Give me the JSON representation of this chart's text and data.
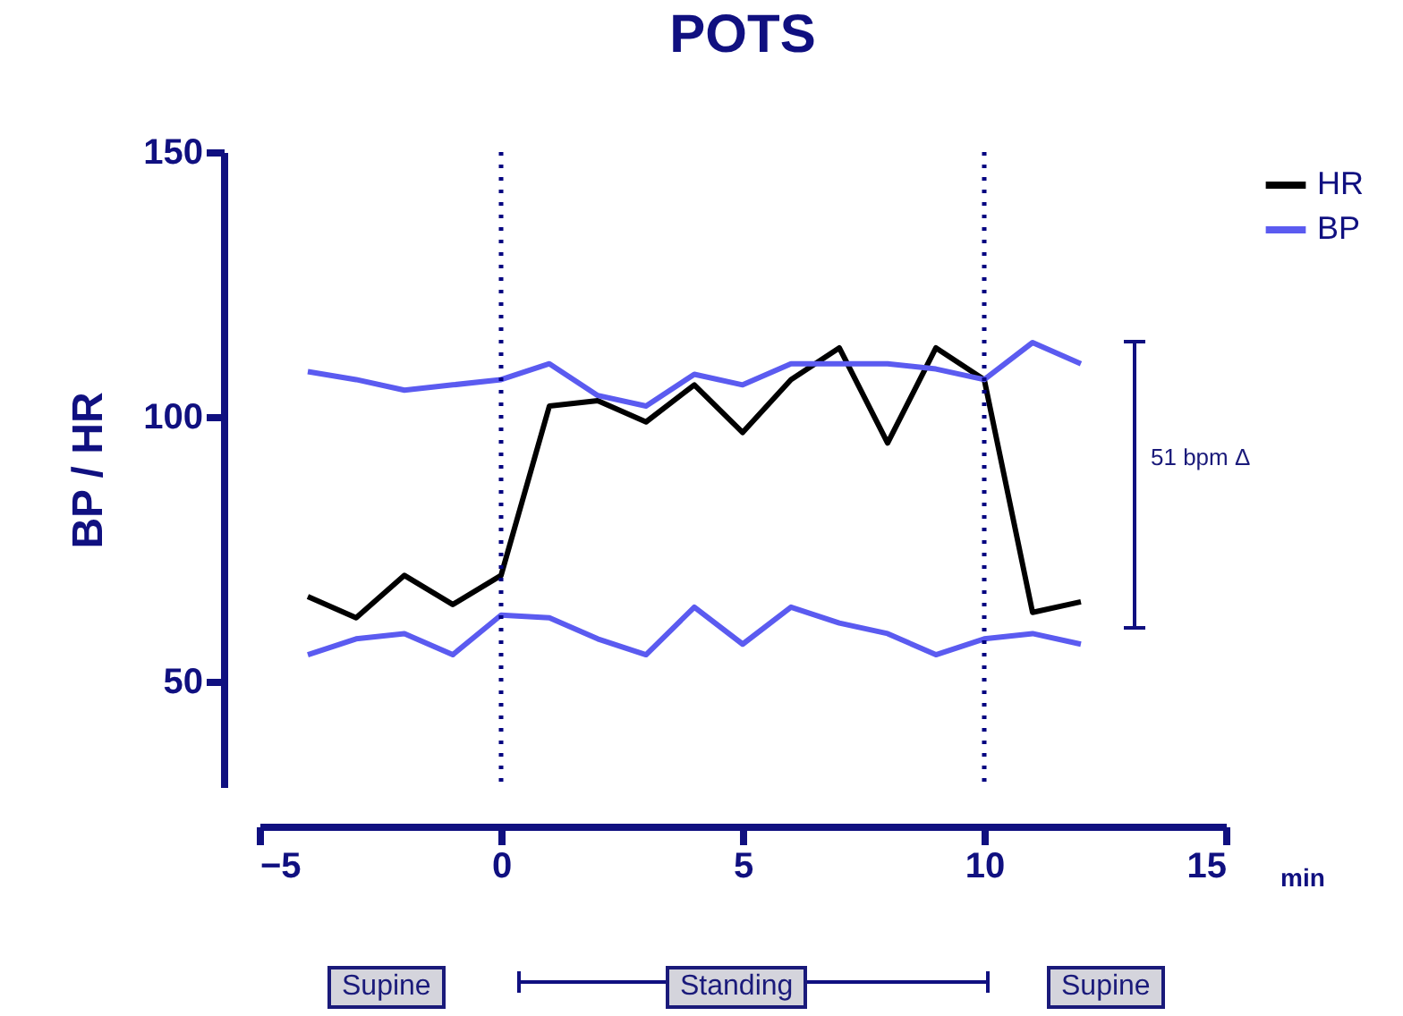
{
  "chart_data": {
    "type": "line",
    "title": "POTS",
    "xlabel": "min",
    "ylabel": "BP / HR",
    "x": [
      -4,
      -3,
      -2,
      -1,
      0,
      1,
      2,
      3,
      4,
      5,
      6,
      7,
      8,
      9,
      10,
      11,
      12
    ],
    "series": [
      {
        "name": "HR",
        "color": "#000000",
        "values": [
          66,
          62,
          70,
          64.5,
          70,
          102,
          103,
          99,
          106,
          97,
          107,
          113,
          95,
          113,
          107,
          63,
          65
        ]
      },
      {
        "name": "BP",
        "color": "#5b5bf0",
        "values": [
          108.5,
          107,
          105,
          106,
          107,
          110,
          104,
          102,
          108,
          106,
          110,
          110,
          110,
          109,
          107,
          114,
          110
        ]
      },
      {
        "color": "#5b5bf0",
        "values": [
          55,
          58,
          59,
          55,
          62.5,
          62,
          58,
          55,
          64,
          57,
          64,
          61,
          59,
          55,
          58,
          59,
          57
        ]
      }
    ],
    "xlim": [
      -5,
      15
    ],
    "ylim": [
      30,
      150
    ],
    "xticks": [
      -5,
      0,
      5,
      10,
      15
    ],
    "yticks": [
      50,
      100,
      150
    ],
    "ref_lines": [
      {
        "axis": "x",
        "value": 0,
        "color": "#000080",
        "line_style": "dotted"
      },
      {
        "axis": "x",
        "value": 10,
        "color": "#000080",
        "line_style": "dotted"
      }
    ],
    "annotations": [
      "51 bpm Δ",
      "Supine",
      "Standing",
      "Supine"
    ],
    "legend": "top right",
    "grid": false
  }
}
